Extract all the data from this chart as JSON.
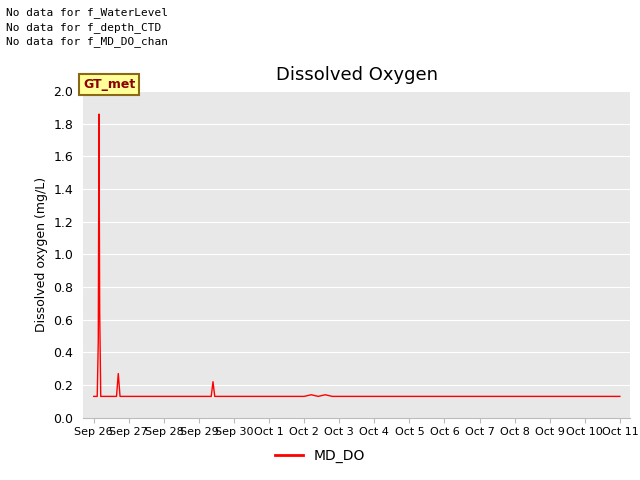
{
  "title": "Dissolved Oxygen",
  "ylabel": "Dissolved oxygen (mg/L)",
  "ylim": [
    0.0,
    2.0
  ],
  "yticks": [
    0.0,
    0.2,
    0.4,
    0.6,
    0.8,
    1.0,
    1.2,
    1.4,
    1.6,
    1.8,
    2.0
  ],
  "no_data_texts": [
    "No data for f_WaterLevel",
    "No data for f_depth_CTD",
    "No data for f_MD_DO_chan"
  ],
  "gt_met_label": "GT_met",
  "legend_label": "MD_DO",
  "line_color": "#ff0000",
  "bg_color": "#e8e8e8",
  "fig_bg": "#ffffff",
  "xtick_labels": [
    "Sep 26",
    "Sep 27",
    "Sep 28",
    "Sep 29",
    "Sep 30",
    "Oct 1",
    "Oct 2",
    "Oct 3",
    "Oct 4",
    "Oct 5",
    "Oct 6",
    "Oct 7",
    "Oct 8",
    "Oct 9",
    "Oct 10",
    "Oct 11"
  ],
  "data_points": [
    [
      0.0,
      0.13
    ],
    [
      0.05,
      0.13
    ],
    [
      0.1,
      0.13
    ],
    [
      0.13,
      0.47
    ],
    [
      0.15,
      1.86
    ],
    [
      0.17,
      0.65
    ],
    [
      0.2,
      0.13
    ],
    [
      0.25,
      0.13
    ],
    [
      0.3,
      0.13
    ],
    [
      0.35,
      0.13
    ],
    [
      0.45,
      0.13
    ],
    [
      0.6,
      0.13
    ],
    [
      0.65,
      0.13
    ],
    [
      0.7,
      0.27
    ],
    [
      0.75,
      0.13
    ],
    [
      0.8,
      0.13
    ],
    [
      0.85,
      0.13
    ],
    [
      0.9,
      0.13
    ],
    [
      0.95,
      0.13
    ],
    [
      1.0,
      0.13
    ],
    [
      1.05,
      0.13
    ],
    [
      1.1,
      0.13
    ],
    [
      1.15,
      0.13
    ],
    [
      1.2,
      0.13
    ],
    [
      1.25,
      0.13
    ],
    [
      1.3,
      0.13
    ],
    [
      1.35,
      0.13
    ],
    [
      1.4,
      0.13
    ],
    [
      1.45,
      0.13
    ],
    [
      1.5,
      0.13
    ],
    [
      1.55,
      0.13
    ],
    [
      1.6,
      0.13
    ],
    [
      1.65,
      0.13
    ],
    [
      1.7,
      0.13
    ],
    [
      1.75,
      0.13
    ],
    [
      1.8,
      0.13
    ],
    [
      1.85,
      0.13
    ],
    [
      1.9,
      0.13
    ],
    [
      1.95,
      0.13
    ],
    [
      2.0,
      0.13
    ],
    [
      2.05,
      0.13
    ],
    [
      2.1,
      0.13
    ],
    [
      2.15,
      0.13
    ],
    [
      2.2,
      0.13
    ],
    [
      2.25,
      0.13
    ],
    [
      2.3,
      0.13
    ],
    [
      2.35,
      0.13
    ],
    [
      2.4,
      0.13
    ],
    [
      2.45,
      0.13
    ],
    [
      2.5,
      0.13
    ],
    [
      2.55,
      0.13
    ],
    [
      2.6,
      0.13
    ],
    [
      2.65,
      0.13
    ],
    [
      2.7,
      0.13
    ],
    [
      2.75,
      0.13
    ],
    [
      2.8,
      0.13
    ],
    [
      2.85,
      0.13
    ],
    [
      2.9,
      0.13
    ],
    [
      2.95,
      0.13
    ],
    [
      3.0,
      0.13
    ],
    [
      3.05,
      0.13
    ],
    [
      3.1,
      0.13
    ],
    [
      3.15,
      0.13
    ],
    [
      3.2,
      0.13
    ],
    [
      3.25,
      0.13
    ],
    [
      3.3,
      0.13
    ],
    [
      3.35,
      0.13
    ],
    [
      3.4,
      0.22
    ],
    [
      3.45,
      0.13
    ],
    [
      3.5,
      0.13
    ],
    [
      3.55,
      0.13
    ],
    [
      3.6,
      0.13
    ],
    [
      3.65,
      0.13
    ],
    [
      3.7,
      0.13
    ],
    [
      3.75,
      0.13
    ],
    [
      3.8,
      0.13
    ],
    [
      3.85,
      0.13
    ],
    [
      3.9,
      0.13
    ],
    [
      3.95,
      0.13
    ],
    [
      4.0,
      0.13
    ],
    [
      4.2,
      0.13
    ],
    [
      4.4,
      0.13
    ],
    [
      4.6,
      0.13
    ],
    [
      4.8,
      0.13
    ],
    [
      5.0,
      0.13
    ],
    [
      5.2,
      0.13
    ],
    [
      5.4,
      0.13
    ],
    [
      5.6,
      0.13
    ],
    [
      5.8,
      0.13
    ],
    [
      6.0,
      0.13
    ],
    [
      6.2,
      0.14
    ],
    [
      6.4,
      0.13
    ],
    [
      6.6,
      0.14
    ],
    [
      6.8,
      0.13
    ],
    [
      7.0,
      0.13
    ],
    [
      7.2,
      0.13
    ],
    [
      7.4,
      0.13
    ],
    [
      7.6,
      0.13
    ],
    [
      7.8,
      0.13
    ],
    [
      8.0,
      0.13
    ],
    [
      8.2,
      0.13
    ],
    [
      8.4,
      0.13
    ],
    [
      8.6,
      0.13
    ],
    [
      8.8,
      0.13
    ],
    [
      9.0,
      0.13
    ],
    [
      9.2,
      0.13
    ],
    [
      9.4,
      0.13
    ],
    [
      9.6,
      0.13
    ],
    [
      9.8,
      0.13
    ],
    [
      10.0,
      0.13
    ],
    [
      10.2,
      0.13
    ],
    [
      10.4,
      0.13
    ],
    [
      10.6,
      0.13
    ],
    [
      10.8,
      0.13
    ],
    [
      11.0,
      0.13
    ],
    [
      11.2,
      0.13
    ],
    [
      11.4,
      0.13
    ],
    [
      11.6,
      0.13
    ],
    [
      11.8,
      0.13
    ],
    [
      12.0,
      0.13
    ],
    [
      12.2,
      0.13
    ],
    [
      12.4,
      0.13
    ],
    [
      12.6,
      0.13
    ],
    [
      12.8,
      0.13
    ],
    [
      13.0,
      0.13
    ],
    [
      13.2,
      0.13
    ],
    [
      13.4,
      0.13
    ],
    [
      13.6,
      0.13
    ],
    [
      13.8,
      0.13
    ],
    [
      14.0,
      0.13
    ],
    [
      14.2,
      0.13
    ],
    [
      14.4,
      0.13
    ],
    [
      14.6,
      0.13
    ],
    [
      14.8,
      0.13
    ],
    [
      15.0,
      0.13
    ]
  ]
}
